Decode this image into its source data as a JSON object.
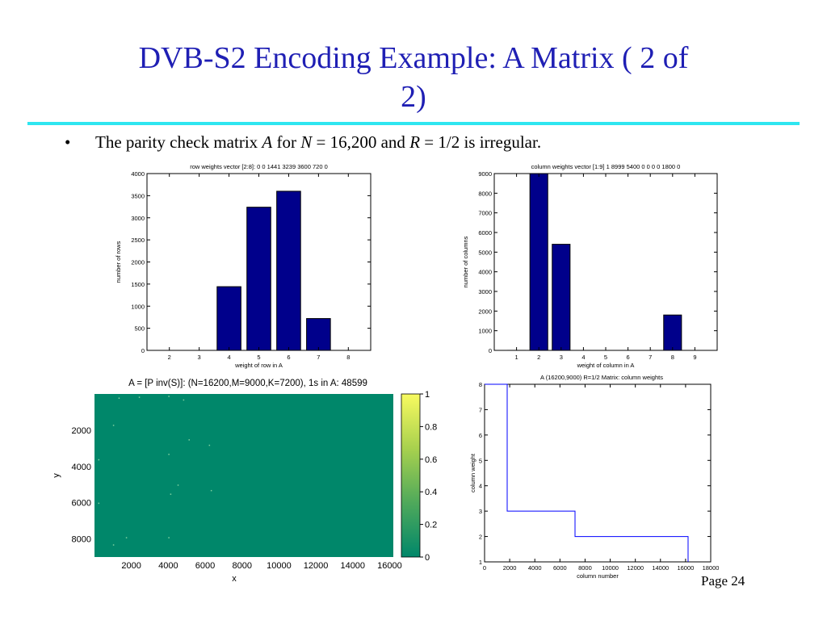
{
  "slide": {
    "title_line1": "DVB-S2 Encoding Example: A Matrix ( 2 of",
    "title_line2": "2)",
    "bullet_symbol": "•",
    "bullet_parts": [
      "The parity check matrix ",
      "A",
      " for ",
      "N",
      " = 16,200 and ",
      "R",
      " = 1/2 is irregular."
    ],
    "page_number": "Page 24",
    "title_color": "#1f1fb4",
    "rule_color": "#2ee6f0"
  },
  "chart_data": [
    {
      "type": "bar",
      "title": "row weights vector [2:8]: 0    0  1441  3239  3600   720    0",
      "xlabel": "weight of row in A",
      "ylabel": "number of rows",
      "categories": [
        2,
        3,
        4,
        5,
        6,
        7,
        8
      ],
      "values": [
        0,
        0,
        1441,
        3239,
        3600,
        720,
        0
      ],
      "xlim": [
        1.25,
        8.75
      ],
      "ylim": [
        0,
        4000
      ],
      "yticks": [
        0,
        500,
        1000,
        1500,
        2000,
        2500,
        3000,
        3500,
        4000
      ],
      "bar_color": "#00008b"
    },
    {
      "type": "bar",
      "title": "column weights vector [1:9] 1  8999  5400     0     0     0     0  1800     0",
      "xlabel": "weight of column in A",
      "ylabel": "number of columns",
      "categories": [
        1,
        2,
        3,
        4,
        5,
        6,
        7,
        8,
        9
      ],
      "values": [
        1,
        8999,
        5400,
        0,
        0,
        0,
        0,
        1800,
        0
      ],
      "xlim": [
        0,
        10
      ],
      "ylim": [
        0,
        9000
      ],
      "yticks": [
        0,
        1000,
        2000,
        3000,
        4000,
        5000,
        6000,
        7000,
        8000,
        9000
      ],
      "bar_color": "#00008b"
    },
    {
      "type": "heatmap",
      "title": "A = [P inv(S)]: (N=16200,M=9000,K=7200), 1s in A: 48599",
      "xlabel": "x",
      "ylabel": "y",
      "xlim": [
        0,
        16200
      ],
      "ylim": [
        0,
        9000
      ],
      "xticks": [
        2000,
        4000,
        6000,
        8000,
        10000,
        12000,
        14000,
        16000
      ],
      "yticks": [
        2000,
        4000,
        6000,
        8000
      ],
      "background_color": "#00876a",
      "colorbar": {
        "ticks": [
          "0",
          "0.2",
          "0.4",
          "0.6",
          "0.8",
          "1"
        ],
        "colors": [
          "#00876a",
          "#4fa95b",
          "#a8d14e",
          "#f8fa60"
        ]
      },
      "points": [
        [
          1300,
          200
        ],
        [
          2400,
          150
        ],
        [
          4000,
          100
        ],
        [
          4800,
          300
        ],
        [
          1000,
          1700
        ],
        [
          5100,
          2500
        ],
        [
          6200,
          2800
        ],
        [
          4000,
          3300
        ],
        [
          200,
          3600
        ],
        [
          4500,
          5000
        ],
        [
          6300,
          5300
        ],
        [
          4100,
          5500
        ],
        [
          200,
          6000
        ],
        [
          1700,
          7900
        ],
        [
          4000,
          7900
        ],
        [
          1000,
          8300
        ]
      ]
    },
    {
      "type": "line",
      "title": "A (16200,9000) R=1/2 Matrix: column weights",
      "xlabel": "column number",
      "ylabel": "column weight",
      "xlim": [
        0,
        18000
      ],
      "ylim": [
        1,
        8
      ],
      "xticks": [
        0,
        2000,
        4000,
        6000,
        8000,
        10000,
        12000,
        14000,
        16000,
        18000
      ],
      "yticks": [
        1,
        2,
        3,
        4,
        5,
        6,
        7,
        8
      ],
      "series": [
        {
          "color": "#0000ff",
          "x": [
            0,
            1800,
            1800,
            7200,
            7200,
            16199,
            16199
          ],
          "y": [
            8,
            8,
            3,
            3,
            2,
            2,
            1
          ]
        }
      ]
    }
  ]
}
